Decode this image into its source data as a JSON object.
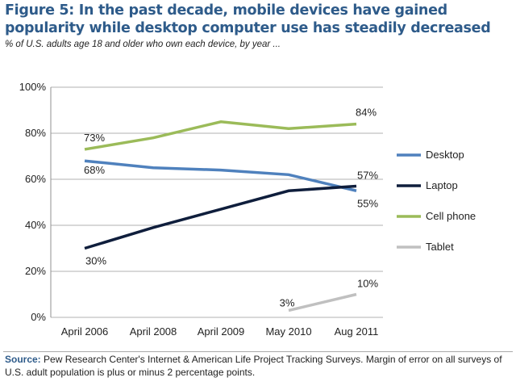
{
  "title": "Figure 5:  In the past decade, mobile devices have gained popularity while desktop computer use has steadily decreased",
  "subtitle": "% of U.S. adults age 18 and older who own each device, by year ...",
  "source_label": "Source:",
  "source_text": "Pew Research Center's Internet & American Life Project Tracking Surveys.  Margin of error on  all surveys of U.S. adult population is plus or minus 2 percentage points.",
  "chart_data": {
    "type": "line",
    "categories": [
      "April 2006",
      "April 2008",
      "April 2009",
      "May 2010",
      "Aug 2011"
    ],
    "ylim": [
      0,
      100
    ],
    "yticks": [
      "0%",
      "20%",
      "40%",
      "60%",
      "80%",
      "100%"
    ],
    "grid": true,
    "legend": "right",
    "series": [
      {
        "name": "Desktop",
        "color": "#4f81bd",
        "values": [
          68,
          65,
          64,
          62,
          55
        ],
        "labels": {
          "0": "68%",
          "4": "55%"
        }
      },
      {
        "name": "Laptop",
        "color": "#0f1e3c",
        "values": [
          30,
          39,
          47,
          55,
          57
        ],
        "labels": {
          "0": "30%",
          "4": "57%"
        }
      },
      {
        "name": "Cell phone",
        "color": "#9bbb59",
        "values": [
          73,
          78,
          85,
          82,
          84
        ],
        "labels": {
          "0": "73%",
          "4": "84%"
        }
      },
      {
        "name": "Tablet",
        "color": "#c0c0c0",
        "values": [
          null,
          null,
          null,
          3,
          10
        ],
        "labels": {
          "3": "3%",
          "4": "10%"
        }
      }
    ]
  }
}
